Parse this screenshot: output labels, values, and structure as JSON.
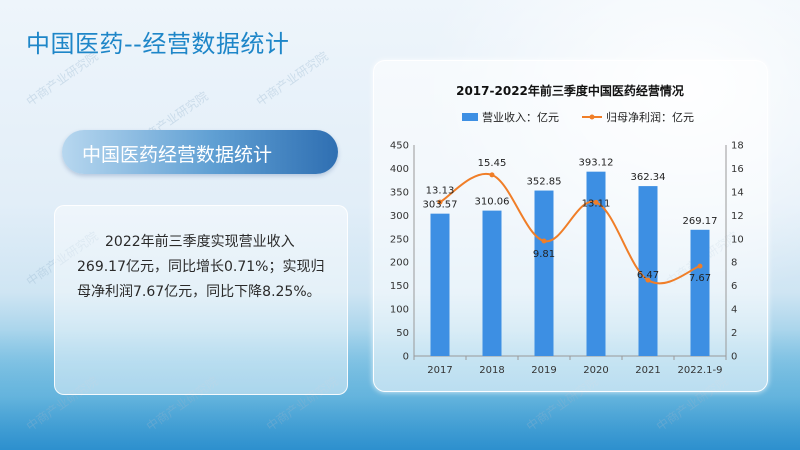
{
  "page": {
    "title": "中国医药--经营数据统计",
    "section_label": "中国医药经营数据统计",
    "summary": "2022年前三季度实现营业收入269.17亿元，同比增长0.71%；实现归母净利润7.67亿元，同比下降8.25%。"
  },
  "chart_data": {
    "type": "bar+line",
    "title": "2017-2022年前三季度中国医药经营情况",
    "categories": [
      "2017",
      "2018",
      "2019",
      "2020",
      "2021",
      "2022.1-9"
    ],
    "series": [
      {
        "name": "营业收入：亿元",
        "type": "bar",
        "axis": "left",
        "color": "#3d8fe3",
        "values": [
          303.57,
          310.06,
          352.85,
          393.12,
          362.34,
          269.17
        ],
        "labels": [
          "303.57",
          "310.06",
          "352.85",
          "393.12",
          "362.34",
          "269.17"
        ]
      },
      {
        "name": "归母净利润：亿元",
        "type": "line",
        "axis": "right",
        "color": "#f07e28",
        "values": [
          13.13,
          15.45,
          9.81,
          13.11,
          6.47,
          7.67
        ],
        "labels": [
          "13.13",
          "15.45",
          "9.81",
          "13.11",
          "6.47",
          "7.67"
        ]
      }
    ],
    "y_left": {
      "min": 0,
      "max": 450,
      "step": 50
    },
    "y_right": {
      "min": 0,
      "max": 18,
      "step": 2
    },
    "legend_position": "top",
    "grid": false
  }
}
